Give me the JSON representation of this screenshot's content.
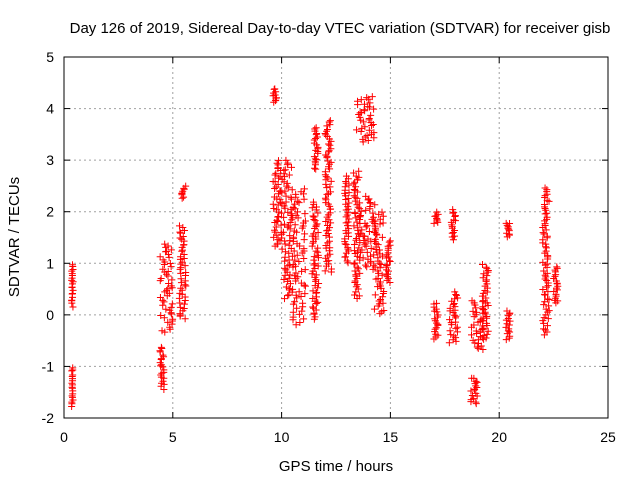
{
  "chart_data": {
    "type": "scatter",
    "title": "Day 126 of 2019, Sidereal Day-to-day VTEC variation (SDTVAR) for receiver gisb",
    "xlabel": "GPS time / hours",
    "ylabel": "SDTVAR / TECUs",
    "xlim": [
      0,
      25
    ],
    "ylim": [
      -2,
      5
    ],
    "xticks": [
      0,
      5,
      10,
      15,
      20,
      25
    ],
    "yticks": [
      -2,
      -1,
      0,
      1,
      2,
      3,
      4,
      5
    ],
    "grid": true,
    "marker": "+",
    "color": "#ff0000",
    "clusters": [
      {
        "x": [
          0.35,
          0.42
        ],
        "y": [
          -1.8,
          -1.0
        ]
      },
      {
        "x": [
          0.35,
          0.42
        ],
        "y": [
          0.15,
          1.0
        ]
      },
      {
        "x": [
          4.4,
          4.6
        ],
        "y": [
          -1.45,
          -0.6
        ]
      },
      {
        "x": [
          4.4,
          5.0
        ],
        "y": [
          -0.35,
          1.4
        ]
      },
      {
        "x": [
          5.3,
          5.6
        ],
        "y": [
          -0.1,
          1.75
        ]
      },
      {
        "x": [
          5.4,
          5.6
        ],
        "y": [
          2.25,
          2.5
        ]
      },
      {
        "x": [
          9.6,
          9.8
        ],
        "y": [
          4.1,
          4.4
        ]
      },
      {
        "x": [
          9.6,
          10.0
        ],
        "y": [
          1.3,
          3.0
        ]
      },
      {
        "x": [
          10.0,
          10.5
        ],
        "y": [
          0.3,
          3.0
        ]
      },
      {
        "x": [
          10.5,
          11.1
        ],
        "y": [
          -0.2,
          2.45
        ]
      },
      {
        "x": [
          11.4,
          11.7
        ],
        "y": [
          -0.1,
          2.2
        ]
      },
      {
        "x": [
          11.5,
          11.7
        ],
        "y": [
          2.8,
          3.65
        ]
      },
      {
        "x": [
          12.0,
          12.3
        ],
        "y": [
          0.8,
          3.8
        ]
      },
      {
        "x": [
          12.9,
          13.1
        ],
        "y": [
          1.0,
          2.7
        ]
      },
      {
        "x": [
          13.3,
          13.6
        ],
        "y": [
          0.3,
          2.8
        ]
      },
      {
        "x": [
          13.4,
          14.3
        ],
        "y": [
          3.35,
          4.25
        ]
      },
      {
        "x": [
          13.6,
          14.3
        ],
        "y": [
          0.9,
          2.3
        ]
      },
      {
        "x": [
          14.2,
          14.7
        ],
        "y": [
          0.0,
          2.0
        ]
      },
      {
        "x": [
          14.8,
          15.0
        ],
        "y": [
          0.6,
          1.45
        ]
      },
      {
        "x": [
          17.0,
          17.2
        ],
        "y": [
          -0.5,
          0.25
        ]
      },
      {
        "x": [
          17.0,
          17.2
        ],
        "y": [
          1.75,
          2.0
        ]
      },
      {
        "x": [
          17.7,
          18.1
        ],
        "y": [
          -0.55,
          0.45
        ]
      },
      {
        "x": [
          17.8,
          18.0
        ],
        "y": [
          1.45,
          2.05
        ]
      },
      {
        "x": [
          18.7,
          19.3
        ],
        "y": [
          -0.7,
          0.3
        ]
      },
      {
        "x": [
          18.7,
          19.0
        ],
        "y": [
          -1.75,
          -1.2
        ]
      },
      {
        "x": [
          19.2,
          19.5
        ],
        "y": [
          -0.5,
          1.0
        ]
      },
      {
        "x": [
          20.3,
          20.5
        ],
        "y": [
          -0.5,
          0.1
        ]
      },
      {
        "x": [
          20.3,
          20.5
        ],
        "y": [
          1.5,
          1.8
        ]
      },
      {
        "x": [
          22.0,
          22.3
        ],
        "y": [
          -0.4,
          2.5
        ]
      },
      {
        "x": [
          22.5,
          22.7
        ],
        "y": [
          0.2,
          0.95
        ]
      }
    ]
  }
}
